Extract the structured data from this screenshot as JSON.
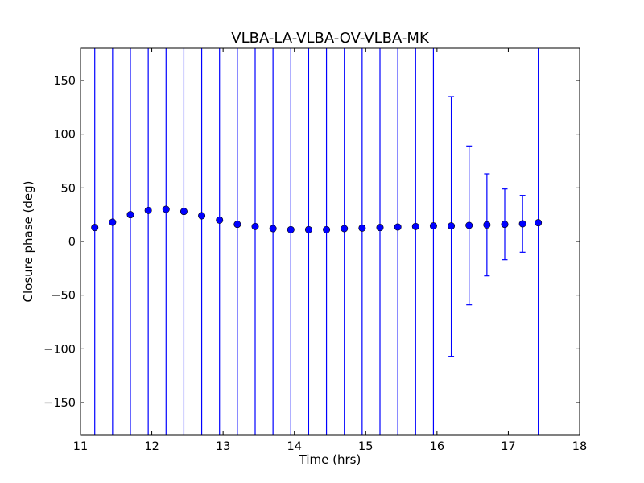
{
  "chart_data": {
    "type": "scatter",
    "title": "VLBA-LA-VLBA-OV-VLBA-MK",
    "xlabel": "Time (hrs)",
    "ylabel": "Closure phase (deg)",
    "xlim": [
      11,
      18
    ],
    "ylim": [
      -180,
      180
    ],
    "xticks": [
      11,
      12,
      13,
      14,
      15,
      16,
      17,
      18
    ],
    "yticks": [
      -150,
      -100,
      -50,
      0,
      50,
      100,
      150
    ],
    "xtick_labels": [
      "11",
      "12",
      "13",
      "14",
      "15",
      "16",
      "17",
      "18"
    ],
    "ytick_labels": [
      "−150",
      "−100",
      "−50",
      "0",
      "50",
      "100",
      "150"
    ],
    "grid": false,
    "series": [
      {
        "color": "#0000ff",
        "marker": "circle",
        "x": [
          11.2,
          11.45,
          11.7,
          11.95,
          12.2,
          12.45,
          12.7,
          12.95,
          13.2,
          13.45,
          13.7,
          13.95,
          14.2,
          14.45,
          14.7,
          14.95,
          15.2,
          15.45,
          15.7,
          15.95,
          16.2,
          16.45,
          16.7,
          16.95,
          17.2,
          17.42
        ],
        "y": [
          13,
          18,
          25,
          29,
          30,
          28,
          24,
          20,
          16,
          14,
          12,
          11,
          11,
          11,
          12,
          12.5,
          13,
          13.5,
          14,
          14.5,
          14.5,
          15,
          15.5,
          16,
          16.5,
          17.5
        ],
        "err_low": [
          null,
          null,
          null,
          null,
          null,
          null,
          null,
          null,
          null,
          null,
          null,
          null,
          null,
          null,
          null,
          null,
          null,
          null,
          null,
          null,
          -107,
          -59,
          -32,
          -17,
          -10,
          null
        ],
        "err_high": [
          null,
          null,
          null,
          null,
          null,
          null,
          null,
          null,
          null,
          null,
          null,
          null,
          null,
          null,
          null,
          null,
          null,
          null,
          null,
          null,
          135,
          89,
          63,
          49,
          43,
          null
        ]
      }
    ]
  }
}
